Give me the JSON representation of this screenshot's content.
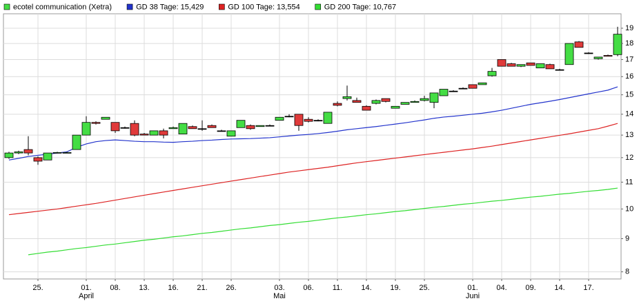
{
  "chart_data": {
    "type": "candlestick",
    "log_scale": true,
    "grid": true,
    "ylim": [
      7.8,
      20
    ],
    "yticks": [
      8,
      9,
      10,
      11,
      12,
      13,
      14,
      15,
      16,
      17,
      18,
      19
    ],
    "categories": [
      null,
      null,
      null,
      "25.",
      null,
      null,
      null,
      null,
      "01.",
      null,
      null,
      "08.",
      null,
      null,
      "13.",
      null,
      null,
      "16.",
      null,
      null,
      "21.",
      null,
      null,
      "26.",
      null,
      null,
      null,
      null,
      "03.",
      null,
      null,
      "06.",
      null,
      null,
      "11.",
      null,
      null,
      "14.",
      null,
      null,
      "19.",
      null,
      null,
      "25.",
      null,
      null,
      null,
      null,
      "01.",
      null,
      null,
      "04.",
      null,
      null,
      "09.",
      null,
      null,
      "14.",
      null,
      null,
      "17.",
      null,
      null,
      null
    ],
    "months": [
      {
        "label": "April",
        "category": 8
      },
      {
        "label": "Mai",
        "category": 28
      },
      {
        "label": "Juni",
        "category": 48
      }
    ],
    "candles": {
      "name": "ecotel communication (Xetra)",
      "up_color": "#44dd44",
      "down_color": "#e03a3a",
      "open": [
        12.0,
        12.2,
        12.35,
        12.0,
        11.9,
        12.2,
        12.2,
        12.35,
        13.0,
        13.6,
        13.75,
        13.6,
        13.35,
        13.55,
        13.05,
        13.0,
        13.2,
        13.3,
        13.05,
        13.4,
        13.3,
        13.45,
        13.2,
        12.95,
        13.35,
        13.45,
        13.4,
        13.45,
        13.7,
        13.9,
        14.0,
        13.75,
        13.7,
        13.55,
        14.55,
        14.8,
        14.7,
        14.4,
        14.55,
        14.8,
        14.3,
        14.5,
        14.6,
        14.7,
        14.6,
        14.95,
        15.2,
        15.35,
        15.55,
        15.55,
        16.05,
        17.0,
        16.75,
        16.6,
        16.8,
        16.5,
        16.7,
        16.4,
        16.7,
        18.1,
        17.4,
        17.05,
        17.25,
        17.3
      ],
      "high": [
        12.25,
        12.3,
        12.95,
        12.05,
        12.2,
        12.25,
        12.25,
        13.0,
        13.9,
        13.65,
        13.85,
        13.6,
        13.4,
        13.7,
        13.1,
        13.2,
        13.3,
        13.4,
        13.55,
        13.45,
        13.7,
        13.5,
        13.25,
        13.2,
        13.7,
        13.5,
        13.45,
        13.5,
        13.85,
        14.0,
        14.0,
        13.85,
        13.75,
        14.1,
        14.65,
        15.5,
        14.85,
        14.45,
        14.75,
        14.8,
        14.4,
        14.6,
        14.7,
        14.95,
        15.1,
        15.3,
        15.25,
        15.4,
        15.55,
        15.65,
        16.5,
        17.0,
        16.8,
        16.7,
        16.8,
        16.75,
        16.75,
        16.45,
        18.0,
        18.15,
        17.45,
        17.15,
        17.3,
        19.1
      ],
      "low": [
        11.95,
        12.15,
        12.1,
        11.7,
        11.9,
        12.2,
        12.2,
        12.35,
        13.0,
        13.5,
        13.75,
        13.1,
        13.3,
        12.95,
        13.0,
        13.0,
        12.85,
        13.3,
        13.05,
        13.3,
        13.2,
        13.35,
        13.2,
        12.95,
        13.35,
        13.25,
        13.4,
        13.45,
        13.7,
        13.85,
        13.2,
        13.6,
        13.65,
        13.55,
        14.4,
        14.7,
        14.6,
        14.2,
        14.5,
        14.6,
        14.3,
        14.5,
        14.6,
        14.65,
        14.3,
        14.95,
        15.15,
        15.35,
        15.35,
        15.55,
        16.0,
        16.6,
        16.6,
        16.55,
        16.65,
        16.5,
        16.45,
        16.4,
        16.7,
        17.75,
        17.35,
        17.0,
        17.2,
        17.2
      ],
      "close": [
        12.2,
        12.25,
        12.2,
        11.85,
        12.2,
        12.22,
        12.22,
        13.0,
        13.6,
        13.55,
        13.85,
        13.2,
        13.35,
        13.0,
        13.0,
        13.2,
        13.0,
        13.35,
        13.55,
        13.3,
        13.3,
        13.35,
        13.2,
        13.2,
        13.7,
        13.3,
        13.45,
        13.45,
        13.85,
        13.9,
        13.45,
        13.65,
        13.7,
        14.1,
        14.45,
        14.9,
        14.6,
        14.2,
        14.7,
        14.65,
        14.4,
        14.6,
        14.65,
        14.8,
        15.1,
        15.3,
        15.2,
        15.35,
        15.35,
        15.65,
        16.3,
        16.6,
        16.6,
        16.7,
        16.65,
        16.75,
        16.45,
        16.4,
        18.0,
        17.75,
        17.4,
        17.15,
        17.2,
        18.6
      ]
    },
    "series": [
      {
        "name": "GD 38 Tage: 15,429",
        "color": "#2233cc",
        "values": [
          11.9,
          11.97,
          12.05,
          12.1,
          12.15,
          12.2,
          12.25,
          12.45,
          12.6,
          12.7,
          12.75,
          12.78,
          12.75,
          12.72,
          12.7,
          12.7,
          12.68,
          12.67,
          12.7,
          12.72,
          12.75,
          12.77,
          12.8,
          12.82,
          12.83,
          12.84,
          12.86,
          12.88,
          12.92,
          12.96,
          13.0,
          13.03,
          13.07,
          13.12,
          13.18,
          13.25,
          13.3,
          13.35,
          13.4,
          13.46,
          13.52,
          13.58,
          13.65,
          13.72,
          13.8,
          13.86,
          13.9,
          13.95,
          14.0,
          14.05,
          14.12,
          14.2,
          14.3,
          14.4,
          14.5,
          14.58,
          14.66,
          14.75,
          14.85,
          14.95,
          15.05,
          15.15,
          15.25,
          15.43
        ]
      },
      {
        "name": "GD 100 Tage: 13,554",
        "color": "#dd2222",
        "values": [
          9.8,
          9.84,
          9.88,
          9.92,
          9.96,
          10.0,
          10.05,
          10.1,
          10.15,
          10.2,
          10.26,
          10.32,
          10.38,
          10.44,
          10.5,
          10.56,
          10.62,
          10.68,
          10.74,
          10.8,
          10.86,
          10.92,
          10.98,
          11.04,
          11.1,
          11.16,
          11.22,
          11.28,
          11.34,
          11.4,
          11.45,
          11.5,
          11.55,
          11.6,
          11.66,
          11.72,
          11.78,
          11.83,
          11.88,
          11.93,
          11.98,
          12.03,
          12.08,
          12.13,
          12.18,
          12.23,
          12.28,
          12.33,
          12.38,
          12.44,
          12.5,
          12.57,
          12.64,
          12.71,
          12.78,
          12.85,
          12.92,
          12.99,
          13.06,
          13.14,
          13.22,
          13.3,
          13.42,
          13.55
        ]
      },
      {
        "name": "GD 200 Tage: 10,767",
        "color": "#33dd33",
        "values": [
          null,
          null,
          8.5,
          8.54,
          8.58,
          8.61,
          8.65,
          8.69,
          8.72,
          8.76,
          8.8,
          8.83,
          8.87,
          8.91,
          8.95,
          8.98,
          9.02,
          9.06,
          9.09,
          9.13,
          9.17,
          9.2,
          9.24,
          9.28,
          9.32,
          9.35,
          9.39,
          9.43,
          9.46,
          9.5,
          9.54,
          9.57,
          9.61,
          9.65,
          9.69,
          9.72,
          9.76,
          9.8,
          9.83,
          9.87,
          9.91,
          9.94,
          9.98,
          10.02,
          10.06,
          10.09,
          10.13,
          10.17,
          10.2,
          10.24,
          10.28,
          10.31,
          10.35,
          10.39,
          10.43,
          10.46,
          10.5,
          10.54,
          10.57,
          10.61,
          10.65,
          10.68,
          10.72,
          10.77
        ]
      }
    ]
  }
}
